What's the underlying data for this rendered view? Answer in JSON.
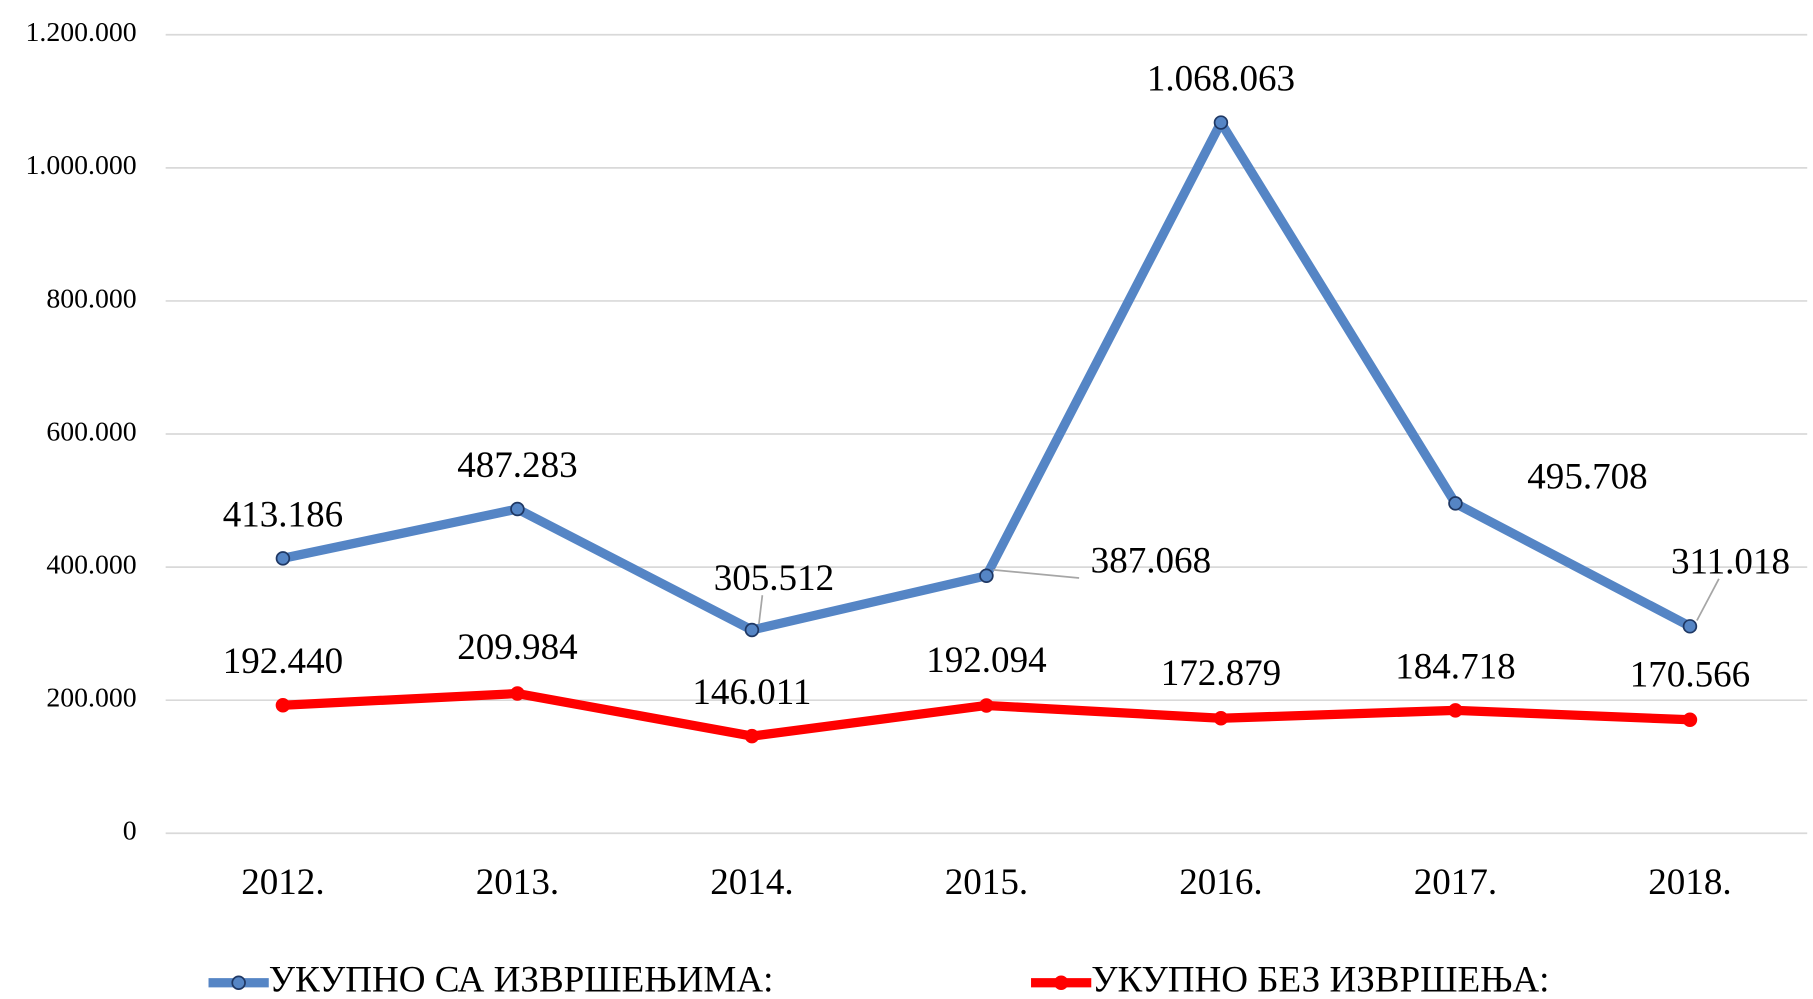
{
  "chart_data": {
    "type": "line",
    "categories": [
      "2012.",
      "2013.",
      "2014.",
      "2015.",
      "2016.",
      "2017.",
      "2018."
    ],
    "series": [
      {
        "name": "УКУПНО СА ИЗВРШЕЊИМА:",
        "color": "#5585c5",
        "values": [
          413186,
          487283,
          305512,
          387068,
          1068063,
          495708,
          311018
        ],
        "value_labels": [
          "413.186",
          "487.283",
          "305.512",
          "387.068",
          "1.068.063",
          "495.708",
          "311.018"
        ]
      },
      {
        "name": "УКУПНО БЕЗ ИЗВРШЕЊА:",
        "color": "#ff0000",
        "values": [
          192440,
          209984,
          146011,
          192094,
          172879,
          184718,
          170566
        ],
        "value_labels": [
          "192.440",
          "209.984",
          "146.011",
          "192.094",
          "172.879",
          "184.718",
          "170.566"
        ]
      }
    ],
    "ylim": [
      0,
      1200000
    ],
    "yticks": [
      0,
      {
        "value": 200000,
        "label": "200.000"
      },
      {
        "value": 400000,
        "label": "400.000"
      },
      {
        "value": 600000,
        "label": "600.000"
      },
      {
        "value": 800000,
        "label": "800.000"
      },
      {
        "value": 1000000,
        "label": "1.000.000"
      },
      {
        "value": 1200000,
        "label": "1.200.000"
      }
    ],
    "grid": true,
    "legend": "bottom"
  }
}
